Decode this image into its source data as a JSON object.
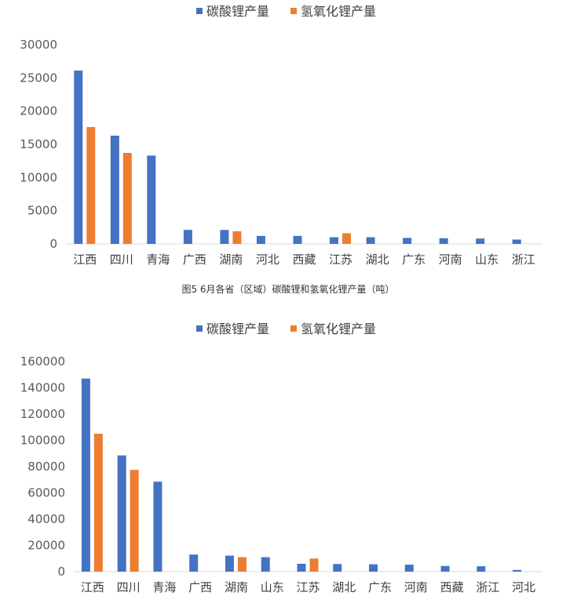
{
  "caption": "图5  6月各省（区域）碳酸锂和氢氧化锂产量（吨）",
  "colors": {
    "carbonate": "#4472C4",
    "hydroxide": "#ED7D31",
    "axis": "#D9D9D9"
  },
  "chart_data": [
    {
      "type": "bar",
      "legend_position": "top",
      "grid": false,
      "ylim": [
        0,
        30000
      ],
      "yticks": [
        "0",
        "5000",
        "10000",
        "15000",
        "20000",
        "25000",
        "30000"
      ],
      "categories": [
        "江西",
        "四川",
        "青海",
        "广西",
        "湖南",
        "河北",
        "西藏",
        "江苏",
        "湖北",
        "广东",
        "河南",
        "山东",
        "浙江"
      ],
      "series": [
        {
          "name": "碳酸锂产量",
          "values": [
            26100,
            16300,
            13300,
            2100,
            2100,
            1200,
            1200,
            1000,
            1000,
            900,
            850,
            800,
            650
          ]
        },
        {
          "name": "氢氧化锂产量",
          "values": [
            17600,
            13700,
            0,
            0,
            1900,
            0,
            0,
            1600,
            0,
            0,
            0,
            0,
            0
          ]
        }
      ]
    },
    {
      "type": "bar",
      "legend_position": "top",
      "grid": false,
      "ylim": [
        0,
        160000
      ],
      "yticks": [
        "0",
        "20000",
        "40000",
        "60000",
        "80000",
        "100000",
        "120000",
        "140000",
        "160000"
      ],
      "categories": [
        "江西",
        "四川",
        "青海",
        "广西",
        "湖南",
        "山东",
        "江苏",
        "湖北",
        "广东",
        "河南",
        "西藏",
        "浙江",
        "河北"
      ],
      "series": [
        {
          "name": "碳酸锂产量",
          "values": [
            147000,
            88500,
            68500,
            13000,
            12200,
            11000,
            6000,
            5800,
            5600,
            5300,
            4300,
            4100,
            1300
          ]
        },
        {
          "name": "氢氧化锂产量",
          "values": [
            105000,
            77500,
            0,
            0,
            11000,
            0,
            10000,
            0,
            0,
            0,
            0,
            0,
            0
          ]
        }
      ]
    }
  ]
}
